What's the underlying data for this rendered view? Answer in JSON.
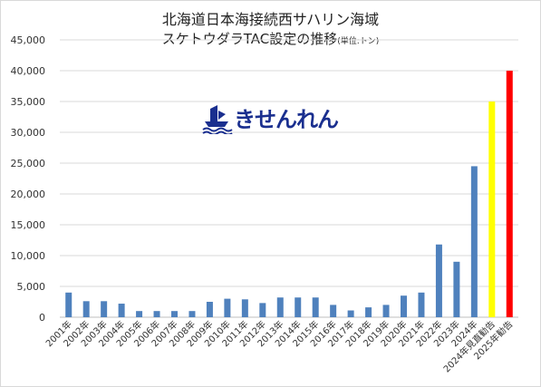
{
  "title_line1": "北海道日本海接続西サハリン海域",
  "title_line2_main": "スケトウダラTAC設定の推移",
  "title_line2_unit": "(単位:トン)",
  "logo": {
    "text": "きせんれん",
    "icon": "ship-wave-icon"
  },
  "colors": {
    "bar": "#4f81bd",
    "highlight_yellow": "#ffff00",
    "highlight_red": "#ff0000",
    "grid": "#d9d9d9"
  },
  "chart_data": {
    "type": "bar",
    "title": "北海道日本海接続西サハリン海域 スケトウダラTAC設定の推移",
    "ylabel": "(単位:トン)",
    "ylim": [
      0,
      45000
    ],
    "yticks": [
      "0",
      "5,000",
      "10,000",
      "15,000",
      "20,000",
      "25,000",
      "30,000",
      "35,000",
      "40,000",
      "45,000"
    ],
    "grid": true,
    "categories": [
      "2001年",
      "2002年",
      "2003年",
      "2004年",
      "2005年",
      "2006年",
      "2007年",
      "2008年",
      "2009年",
      "2010年",
      "2011年",
      "2012年",
      "2013年",
      "2014年",
      "2015年",
      "2016年",
      "2017年",
      "2018年",
      "2019年",
      "2020年",
      "2021年",
      "2022年",
      "2023年",
      "2024年",
      "2024年見直勧告",
      "2025年勧告"
    ],
    "values": [
      4000,
      2600,
      2600,
      2200,
      1000,
      1000,
      1000,
      1000,
      2500,
      3000,
      2900,
      2300,
      3200,
      3200,
      3200,
      2000,
      1100,
      1600,
      2000,
      3500,
      4000,
      11800,
      9000,
      24500,
      35000,
      40000
    ],
    "bar_colors": [
      "#4f81bd",
      "#4f81bd",
      "#4f81bd",
      "#4f81bd",
      "#4f81bd",
      "#4f81bd",
      "#4f81bd",
      "#4f81bd",
      "#4f81bd",
      "#4f81bd",
      "#4f81bd",
      "#4f81bd",
      "#4f81bd",
      "#4f81bd",
      "#4f81bd",
      "#4f81bd",
      "#4f81bd",
      "#4f81bd",
      "#4f81bd",
      "#4f81bd",
      "#4f81bd",
      "#4f81bd",
      "#4f81bd",
      "#4f81bd",
      "#ffff00",
      "#ff0000"
    ]
  }
}
